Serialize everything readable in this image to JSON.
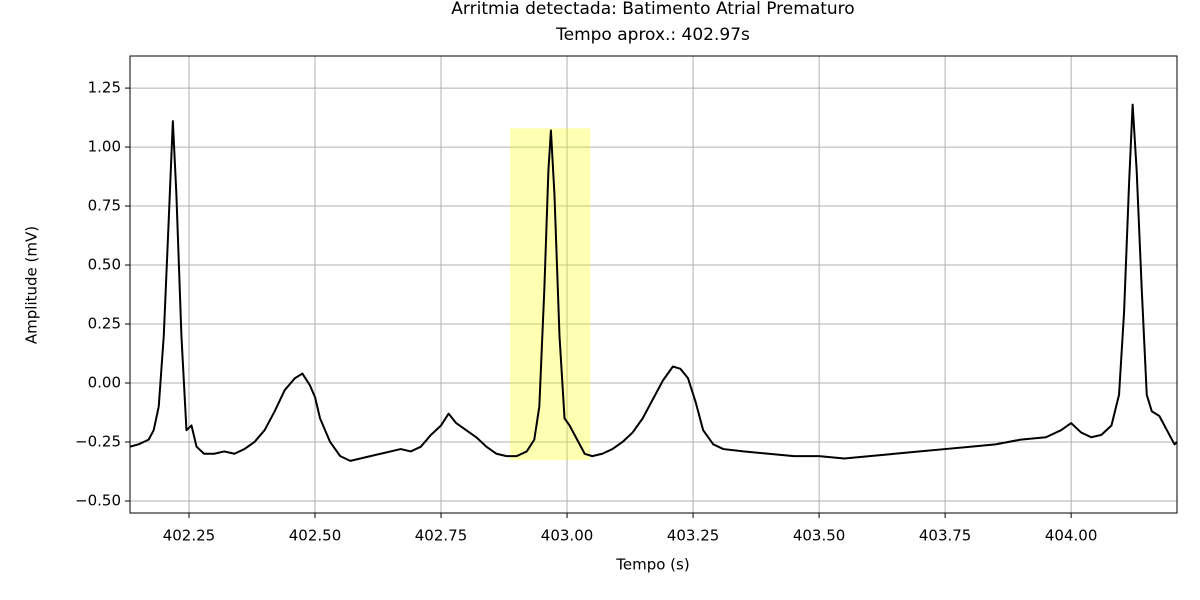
{
  "chart_data": {
    "type": "line",
    "title": "Arritmia detectada: Batimento Atrial Prematuro",
    "subtitle": "Tempo aprox.: 402.97s",
    "x_label": "Tempo (s)",
    "y_label": "Amplitude (mV)",
    "grid": true,
    "xlim": [
      402.133,
      404.21
    ],
    "ylim": [
      -0.551,
      1.386
    ],
    "xticks": [
      402.25,
      {
        "value": 402.5,
        "label": "402.50"
      },
      402.75,
      {
        "value": 403,
        "label": "403.00"
      },
      403.25,
      {
        "value": 403.5,
        "label": "403.50"
      },
      403.75,
      {
        "value": 404,
        "label": "404.00"
      }
    ],
    "yticks": [
      {
        "value": -0.5,
        "label": "−0.50"
      },
      {
        "value": -0.25,
        "label": "−0.25"
      },
      {
        "value": 0,
        "label": "0.00"
      },
      0.25,
      {
        "value": 0.5,
        "label": "0.50"
      },
      0.75,
      {
        "value": 1,
        "label": "1.00"
      },
      1.25
    ],
    "highlight": {
      "x": [
        402.887,
        403.046
      ],
      "y": [
        -0.326,
        1.08
      ],
      "color": "yellow"
    },
    "x": [
      402.133,
      402.15,
      402.16,
      402.17,
      402.18,
      402.19,
      402.2,
      402.21,
      402.218,
      402.225,
      402.235,
      402.245,
      402.255,
      402.265,
      402.28,
      402.3,
      402.32,
      402.34,
      402.36,
      402.38,
      402.4,
      402.42,
      402.44,
      402.46,
      402.475,
      402.49,
      402.5,
      402.51,
      402.53,
      402.55,
      402.57,
      402.59,
      402.61,
      402.63,
      402.65,
      402.67,
      402.69,
      402.71,
      402.73,
      402.75,
      402.765,
      402.78,
      402.8,
      402.82,
      402.84,
      402.86,
      402.88,
      402.9,
      402.92,
      402.935,
      402.945,
      402.955,
      402.963,
      402.968,
      402.975,
      402.985,
      402.995,
      403.005,
      403.02,
      403.035,
      403.05,
      403.07,
      403.09,
      403.11,
      403.13,
      403.15,
      403.17,
      403.19,
      403.21,
      403.225,
      403.24,
      403.255,
      403.27,
      403.29,
      403.31,
      403.35,
      403.4,
      403.45,
      403.5,
      403.55,
      403.6,
      403.65,
      403.7,
      403.75,
      403.8,
      403.85,
      403.9,
      403.95,
      403.98,
      404,
      404.02,
      404.04,
      404.06,
      404.08,
      404.095,
      404.105,
      404.115,
      404.122,
      404.13,
      404.14,
      404.15,
      404.16,
      404.175,
      404.19,
      404.205,
      404.21
    ],
    "series": [
      {
        "color": "#000000",
        "values": [
          -0.27,
          -0.26,
          -0.25,
          -0.24,
          -0.2,
          -0.1,
          0.2,
          0.7,
          1.11,
          0.8,
          0.2,
          -0.2,
          -0.18,
          -0.27,
          -0.3,
          -0.3,
          -0.29,
          -0.3,
          -0.28,
          -0.25,
          -0.2,
          -0.12,
          -0.03,
          0.02,
          0.04,
          -0.01,
          -0.06,
          -0.15,
          -0.25,
          -0.31,
          -0.33,
          -0.32,
          -0.31,
          -0.3,
          -0.29,
          -0.28,
          -0.29,
          -0.27,
          -0.22,
          -0.18,
          -0.13,
          -0.17,
          -0.2,
          -0.23,
          -0.27,
          -0.3,
          -0.31,
          -0.31,
          -0.29,
          -0.24,
          -0.1,
          0.4,
          0.9,
          1.07,
          0.8,
          0.2,
          -0.15,
          -0.18,
          -0.24,
          -0.3,
          -0.31,
          -0.3,
          -0.28,
          -0.25,
          -0.21,
          -0.15,
          -0.07,
          0.01,
          0.07,
          0.06,
          0.02,
          -0.08,
          -0.2,
          -0.26,
          -0.28,
          -0.29,
          -0.3,
          -0.31,
          -0.31,
          -0.32,
          -0.31,
          -0.3,
          -0.29,
          -0.28,
          -0.27,
          -0.26,
          -0.24,
          -0.23,
          -0.2,
          -0.17,
          -0.21,
          -0.23,
          -0.22,
          -0.18,
          -0.05,
          0.3,
          0.85,
          1.18,
          0.9,
          0.4,
          -0.05,
          -0.12,
          -0.14,
          -0.2,
          -0.26,
          -0.25
        ]
      }
    ]
  }
}
